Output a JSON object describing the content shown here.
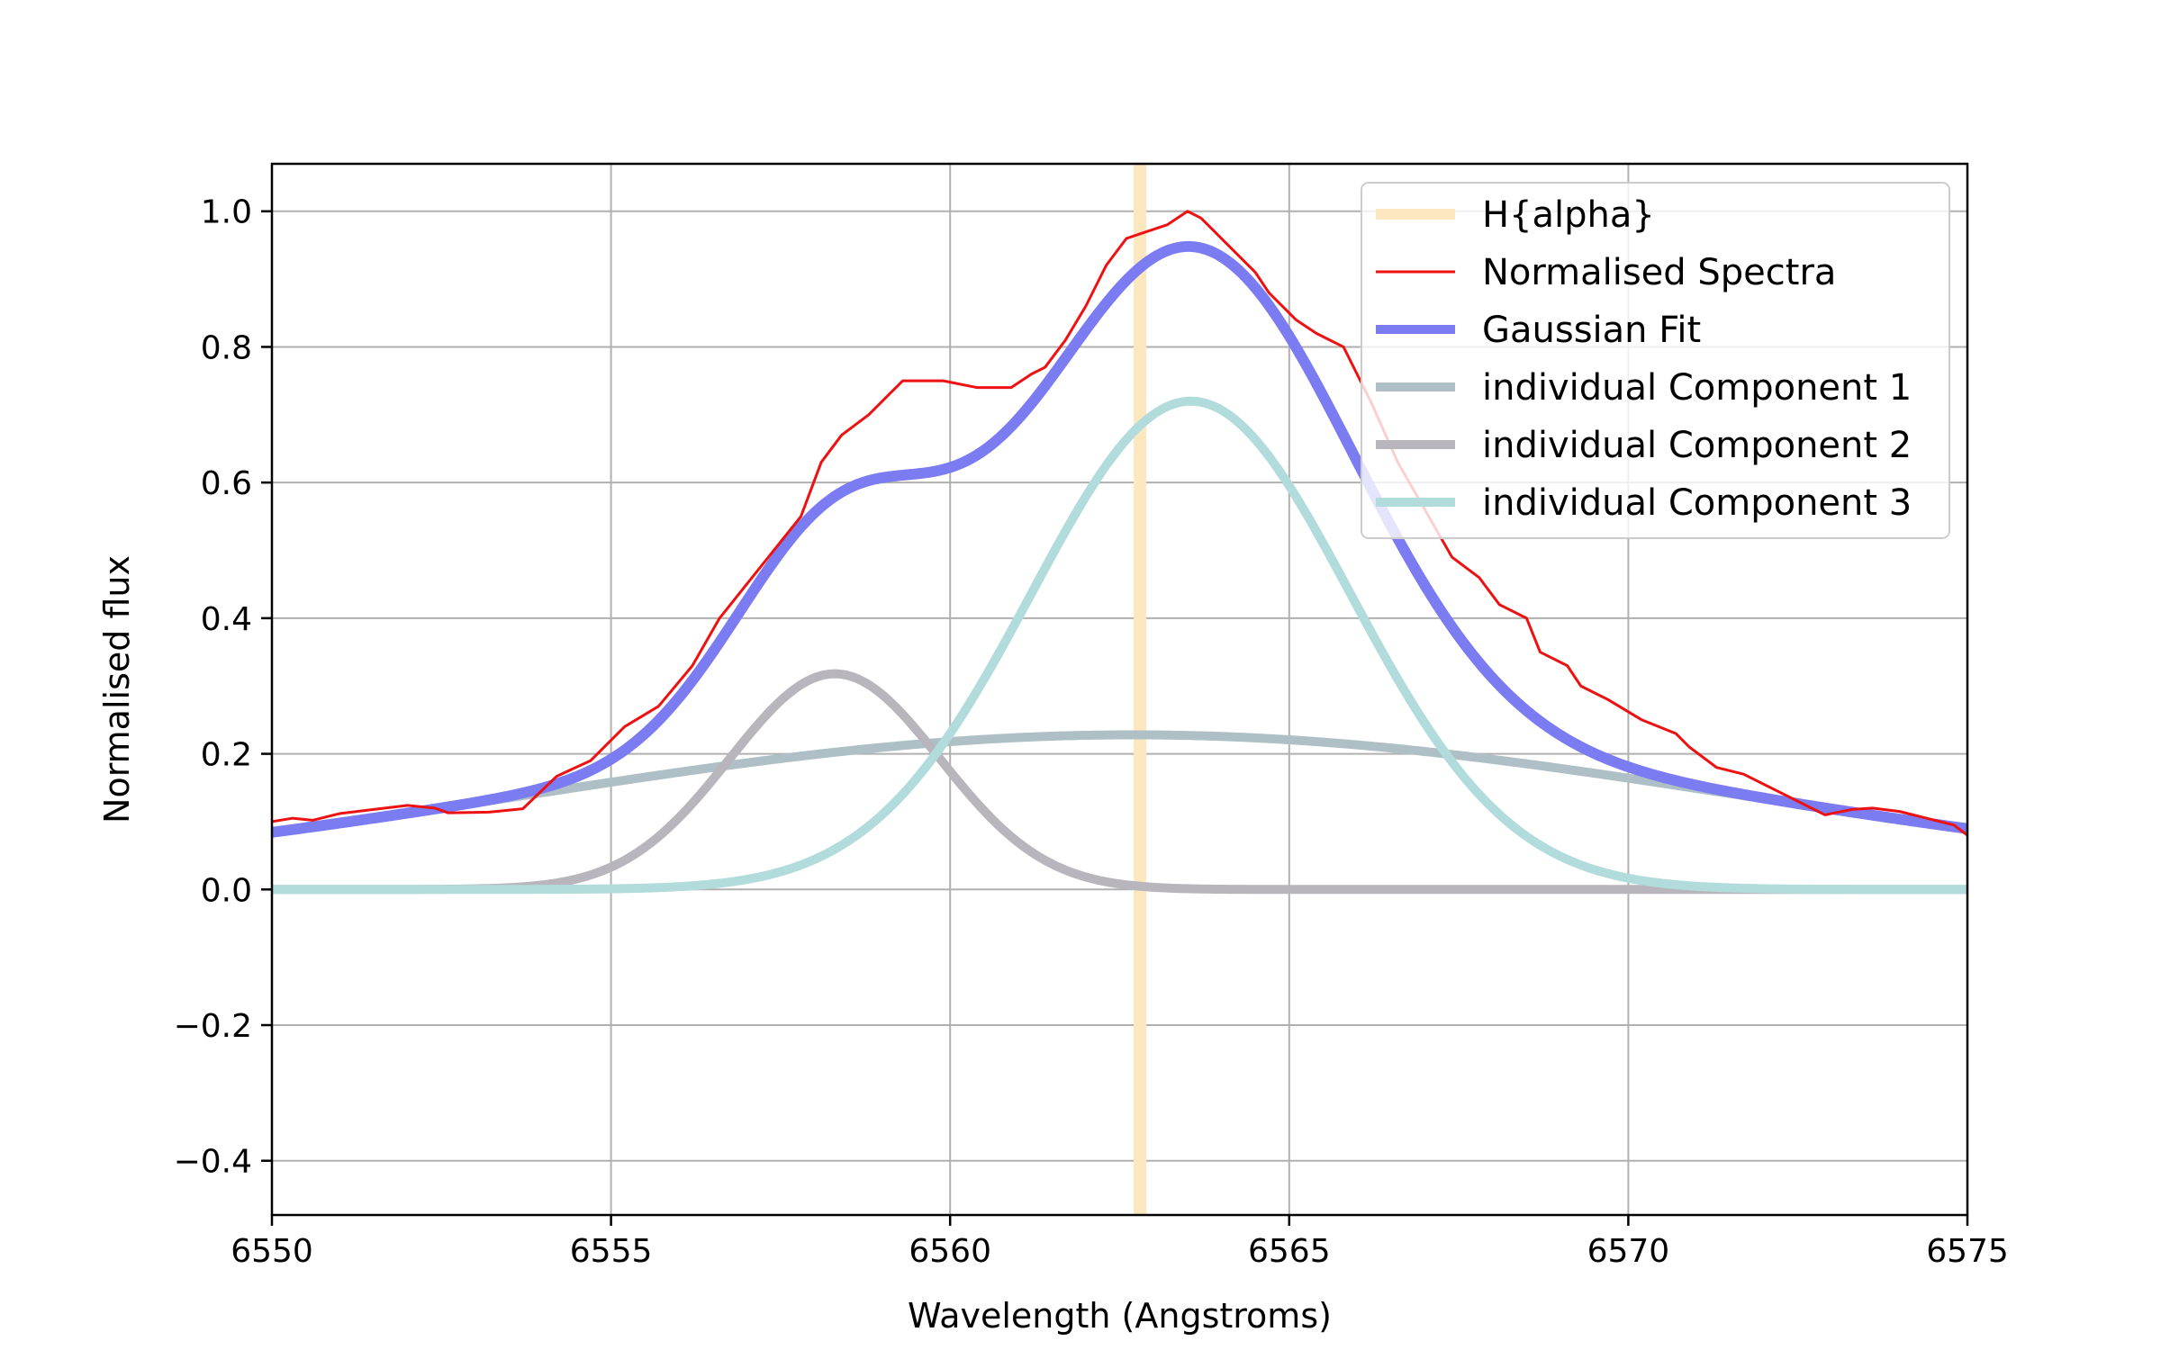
{
  "chart_data": {
    "type": "line",
    "title": "",
    "xlabel": "Wavelength (Angstroms)",
    "ylabel": "Normalised flux",
    "xlim": [
      6550,
      6575
    ],
    "ylim": [
      -0.48,
      1.07
    ],
    "xticks": [
      6550,
      6555,
      6560,
      6565,
      6570,
      6575
    ],
    "xtick_labels": [
      "6550",
      "6555",
      "6560",
      "6565",
      "6570",
      "6575"
    ],
    "yticks": [
      -0.4,
      -0.2,
      0.0,
      0.2,
      0.4,
      0.6,
      0.8,
      1.0
    ],
    "ytick_labels": [
      "−0.4",
      "−0.2",
      "0.0",
      "0.2",
      "0.4",
      "0.6",
      "0.8",
      "1.0"
    ],
    "grid": true,
    "legend_position": "top-right",
    "vline": {
      "name": "H{alpha}",
      "x": 6562.8,
      "color": "#fde7bf"
    },
    "legend": [
      {
        "label": "H{alpha}",
        "color": "#fde7bf"
      },
      {
        "label": "Normalised Spectra",
        "color": "#ee1111"
      },
      {
        "label": "Gaussian Fit",
        "color": "#7b7bf2"
      },
      {
        "label": "individual Component 1",
        "color": "#aec0c6"
      },
      {
        "label": "individual Component 2",
        "color": "#b8b6bc"
      },
      {
        "label": "individual Component 3",
        "color": "#b2dcdc"
      }
    ],
    "components": [
      {
        "name": "individual Component 1",
        "amplitude": 0.228,
        "center": 6562.7,
        "sigma": 9.0,
        "color": "#aec0c6"
      },
      {
        "name": "individual Component 2",
        "amplitude": 0.318,
        "center": 6558.3,
        "sigma": 1.55,
        "color": "#b8b6bc"
      },
      {
        "name": "individual Component 3",
        "amplitude": 0.72,
        "center": 6563.55,
        "sigma": 2.35,
        "color": "#b2dcdc"
      }
    ],
    "fit": {
      "name": "Gaussian Fit",
      "color": "#7b7bf2"
    },
    "spectrum": {
      "name": "Normalised Spectra",
      "color": "#ee1111",
      "x": [
        6550.0,
        6550.3,
        6550.6,
        6551.0,
        6551.5,
        6552.0,
        6552.4,
        6552.6,
        6553.2,
        6553.7,
        6554.2,
        6554.7,
        6555.2,
        6555.7,
        6556.2,
        6556.6,
        6557.0,
        6557.4,
        6557.8,
        6558.1,
        6558.4,
        6558.8,
        6559.1,
        6559.3,
        6559.6,
        6559.9,
        6560.4,
        6560.9,
        6561.2,
        6561.4,
        6561.7,
        6562.0,
        6562.3,
        6562.6,
        6562.9,
        6563.2,
        6563.5,
        6563.7,
        6564.0,
        6564.5,
        6564.7,
        6565.1,
        6565.4,
        6565.8,
        6566.2,
        6566.6,
        6567.0,
        6567.4,
        6567.8,
        6568.1,
        6568.5,
        6568.7,
        6569.1,
        6569.3,
        6569.7,
        6570.2,
        6570.7,
        6570.9,
        6571.3,
        6571.7,
        6572.1,
        6572.6,
        6572.9,
        6573.3,
        6573.6,
        6574.0,
        6574.4,
        6574.8,
        6575.0
      ],
      "y": [
        0.1,
        0.105,
        0.102,
        0.112,
        0.118,
        0.124,
        0.12,
        0.113,
        0.114,
        0.119,
        0.167,
        0.19,
        0.24,
        0.27,
        0.33,
        0.4,
        0.45,
        0.5,
        0.55,
        0.63,
        0.67,
        0.7,
        0.73,
        0.75,
        0.75,
        0.75,
        0.74,
        0.74,
        0.76,
        0.77,
        0.81,
        0.86,
        0.92,
        0.96,
        0.97,
        0.98,
        1.0,
        0.99,
        0.96,
        0.91,
        0.88,
        0.84,
        0.82,
        0.8,
        0.72,
        0.63,
        0.56,
        0.49,
        0.46,
        0.42,
        0.4,
        0.35,
        0.33,
        0.3,
        0.28,
        0.25,
        0.23,
        0.21,
        0.18,
        0.17,
        0.15,
        0.125,
        0.11,
        0.118,
        0.12,
        0.115,
        0.105,
        0.095,
        0.08
      ]
    }
  }
}
